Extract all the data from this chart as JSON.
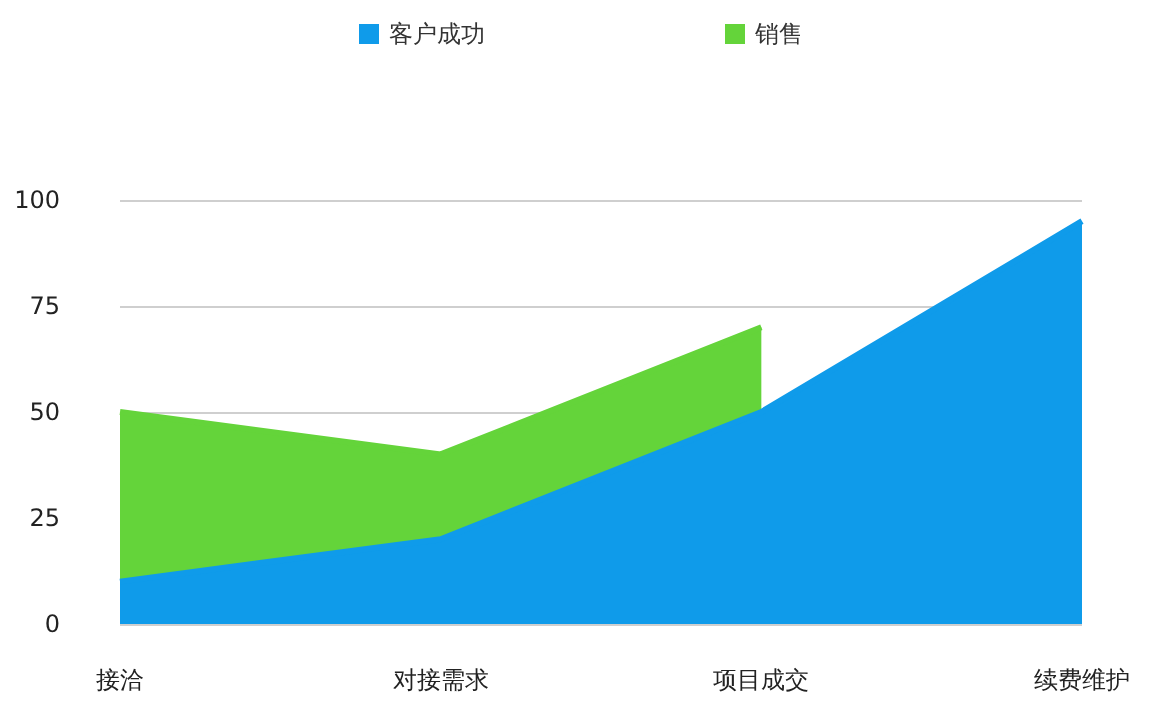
{
  "chart_data": {
    "type": "area",
    "categories": [
      "接洽",
      "对接需求",
      "项目成交",
      "续费维护"
    ],
    "series": [
      {
        "name": "客户成功",
        "color": "#0f9bea",
        "values": [
          10,
          20,
          50,
          95
        ]
      },
      {
        "name": "销售",
        "color": "#64d43a",
        "values": [
          50,
          40,
          70,
          null
        ]
      }
    ],
    "ylim": [
      0,
      100
    ],
    "yticks": [
      0,
      25,
      50,
      75,
      100
    ],
    "grid": "y",
    "legend": "top"
  }
}
